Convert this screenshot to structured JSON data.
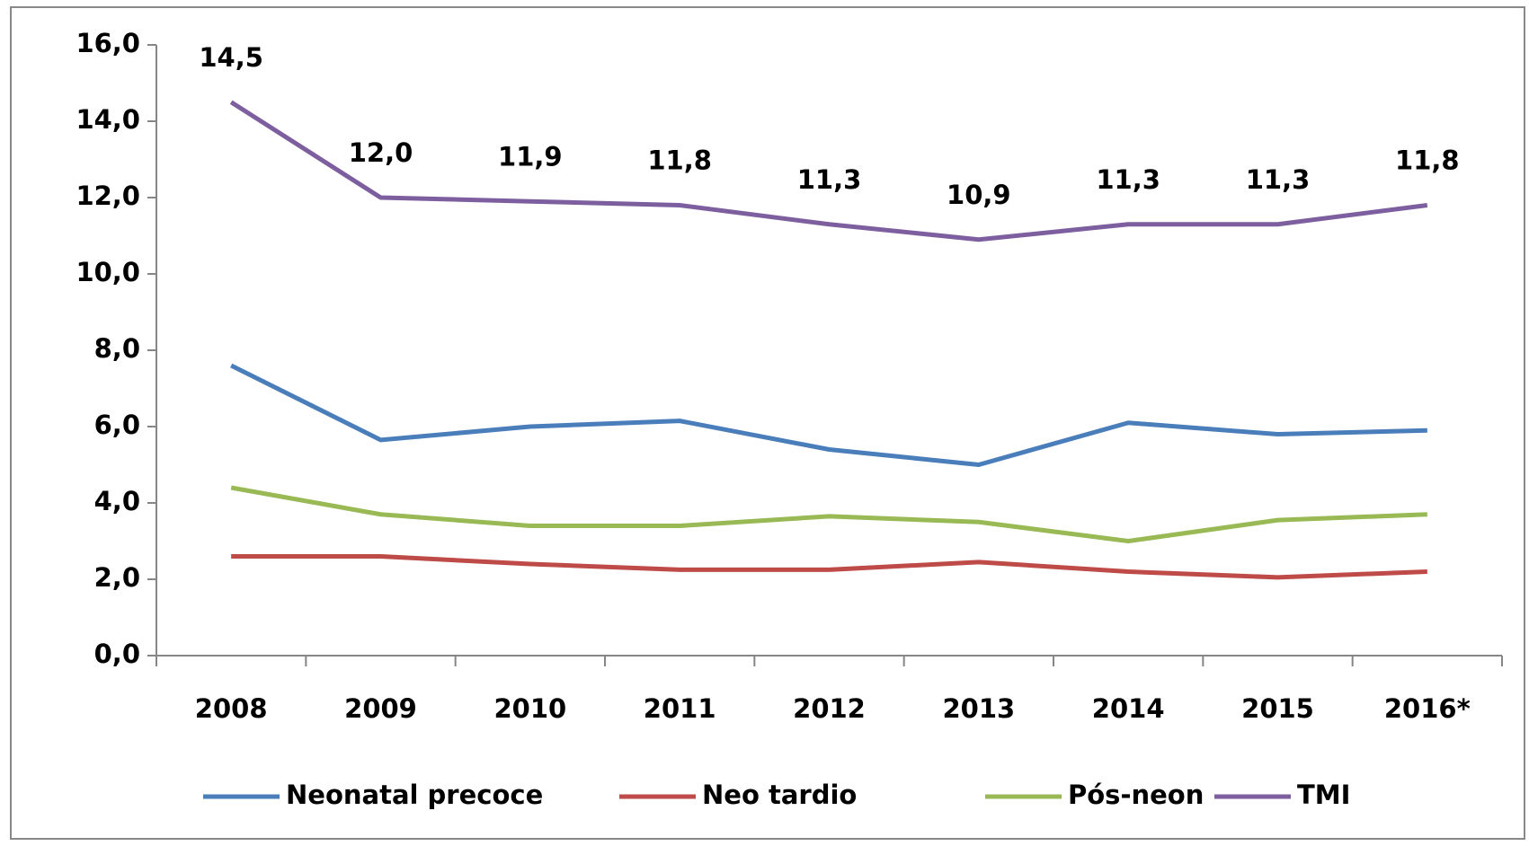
{
  "chart_data": {
    "type": "line",
    "categories": [
      "2008",
      "2009",
      "2010",
      "2011",
      "2012",
      "2013",
      "2014",
      "2015",
      "2016*"
    ],
    "series": [
      {
        "name": "Neonatal precoce",
        "color": "#4a7ebb",
        "values": [
          7.6,
          5.65,
          6.0,
          6.15,
          5.4,
          5.0,
          6.1,
          5.8,
          5.9
        ]
      },
      {
        "name": "Neo tardio",
        "color": "#be4b48",
        "values": [
          2.6,
          2.6,
          2.4,
          2.25,
          2.25,
          2.45,
          2.2,
          2.05,
          2.2
        ]
      },
      {
        "name": "Pós-neon",
        "color": "#98b954",
        "values": [
          4.4,
          3.7,
          3.4,
          3.4,
          3.65,
          3.5,
          3.0,
          3.55,
          3.7
        ]
      },
      {
        "name": "TMI",
        "color": "#7d5fa0",
        "values": [
          14.5,
          12.0,
          11.9,
          11.8,
          11.3,
          10.9,
          11.3,
          11.3,
          11.8
        ],
        "value_labels": [
          "14,5",
          "12,0",
          "11,9",
          "11,8",
          "11,3",
          "10,9",
          "11,3",
          "11,3",
          "11,8"
        ]
      }
    ],
    "ylim": [
      0,
      16
    ],
    "yticks": [
      {
        "value": 0,
        "label": "0,0"
      },
      {
        "value": 2,
        "label": "2,0"
      },
      {
        "value": 4,
        "label": "4,0"
      },
      {
        "value": 6,
        "label": "6,0"
      },
      {
        "value": 8,
        "label": "8,0"
      },
      {
        "value": 10,
        "label": "10,0"
      },
      {
        "value": 12,
        "label": "12,0"
      },
      {
        "value": 14,
        "label": "14,0"
      },
      {
        "value": 16,
        "label": "16,0"
      }
    ],
    "legend": "bottom"
  }
}
